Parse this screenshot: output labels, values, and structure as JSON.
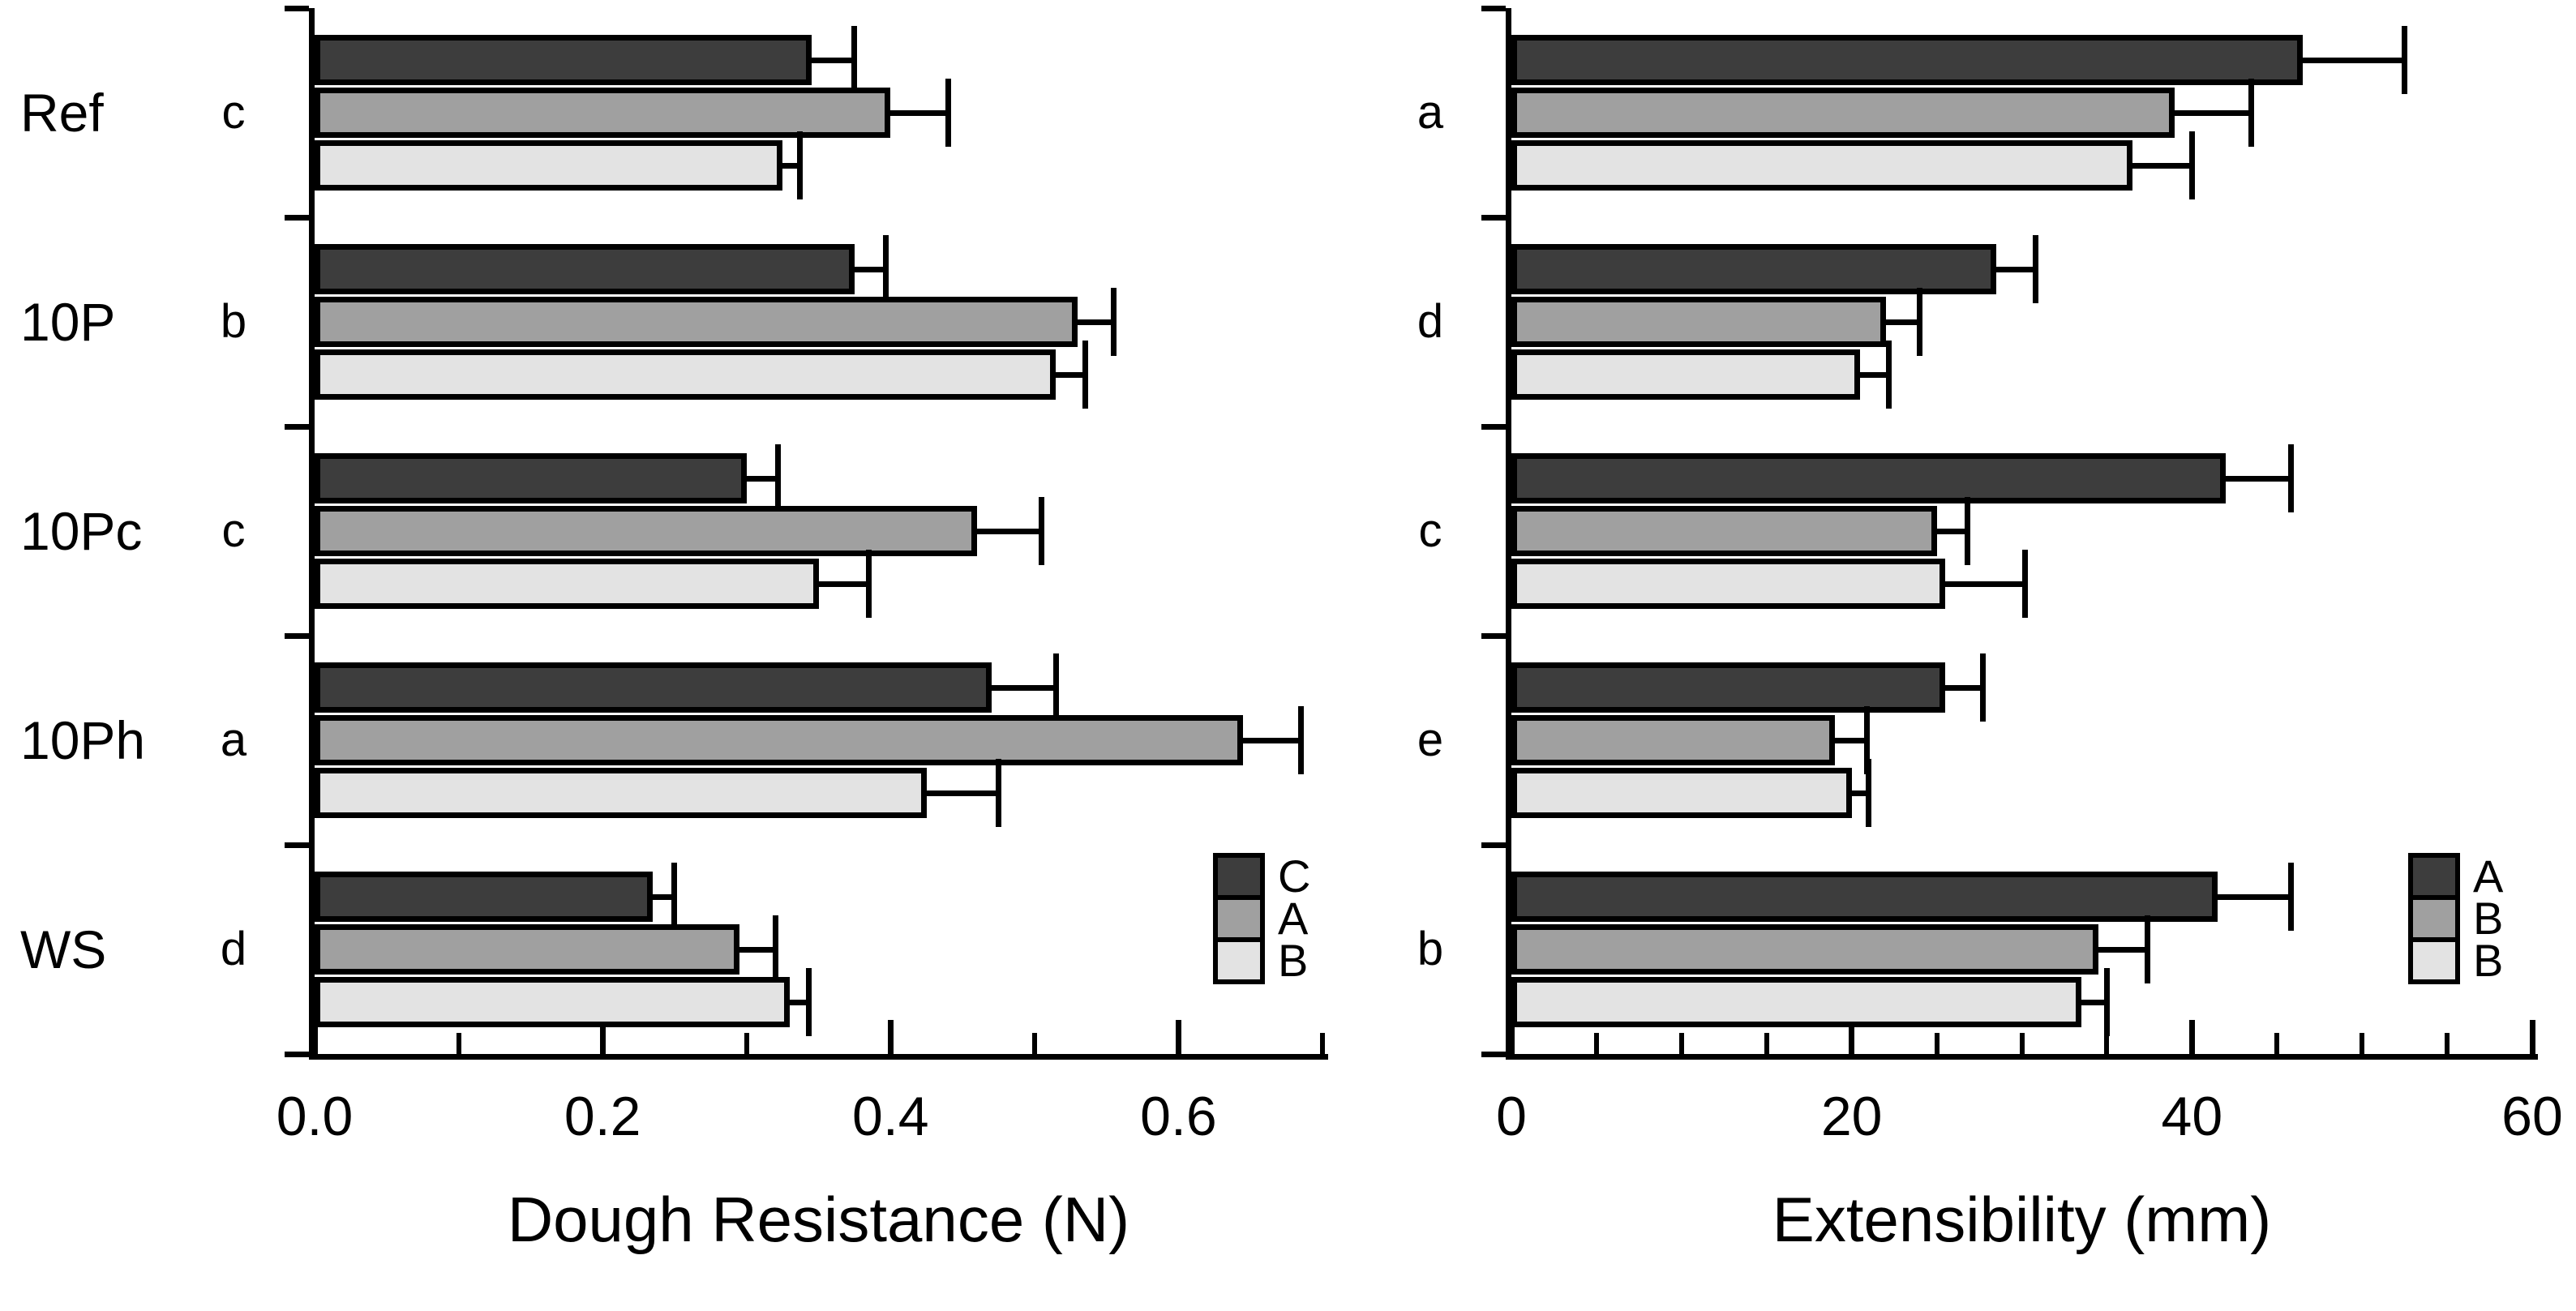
{
  "figure": {
    "background": "#ffffff",
    "foreground": "#000000"
  },
  "colors": {
    "dark": "#3d3d3d",
    "mid": "#a0a0a0",
    "light": "#e3e3e3",
    "outline": "#000000"
  },
  "chart_data": [
    {
      "type": "bar",
      "orientation": "horizontal",
      "xlabel": "Dough Resistance (N)",
      "xlim": [
        0,
        0.7
      ],
      "xticks": [
        0.0,
        0.2,
        0.4,
        0.6
      ],
      "xtick_labels": [
        "0.0",
        "0.2",
        "0.4",
        "0.6"
      ],
      "minor_xticks": [
        0.1,
        0.3,
        0.5,
        0.7
      ],
      "grid": false,
      "categories": [
        "Ref",
        "10P",
        "10Pc",
        "10Ph",
        "WS"
      ],
      "group_letters": [
        "c",
        "b",
        "c",
        "a",
        "d"
      ],
      "show_category_labels": true,
      "legend": [
        "C",
        "A",
        "B"
      ],
      "legend_position": "inside-bottom-right",
      "series": [
        {
          "name": "C",
          "color_key": "dark",
          "values": [
            0.345,
            0.375,
            0.3,
            0.47,
            0.235
          ],
          "errors": [
            0.03,
            0.022,
            0.022,
            0.045,
            0.015
          ]
        },
        {
          "name": "A",
          "color_key": "mid",
          "values": [
            0.4,
            0.53,
            0.46,
            0.645,
            0.295
          ],
          "errors": [
            0.04,
            0.025,
            0.045,
            0.04,
            0.025
          ]
        },
        {
          "name": "B",
          "color_key": "light",
          "values": [
            0.325,
            0.515,
            0.35,
            0.425,
            0.33
          ],
          "errors": [
            0.012,
            0.02,
            0.035,
            0.05,
            0.013
          ]
        }
      ]
    },
    {
      "type": "bar",
      "orientation": "horizontal",
      "xlabel": "Extensibility (mm)",
      "xlim": [
        0,
        60
      ],
      "xticks": [
        0,
        20,
        40,
        60
      ],
      "xtick_labels": [
        "0",
        "20",
        "40",
        "60"
      ],
      "minor_xticks": [
        5,
        10,
        15,
        25,
        30,
        35,
        45,
        50,
        55
      ],
      "grid": false,
      "categories": [
        "Ref",
        "10P",
        "10Pc",
        "10Ph",
        "WS"
      ],
      "group_letters": [
        "a",
        "d",
        "c",
        "e",
        "b"
      ],
      "show_category_labels": false,
      "legend": [
        "A",
        "B",
        "B"
      ],
      "legend_position": "inside-bottom-right",
      "series": [
        {
          "name": "A",
          "color_key": "dark",
          "values": [
            46.5,
            28.5,
            42.0,
            25.5,
            41.5
          ],
          "errors": [
            6.0,
            2.3,
            3.8,
            2.2,
            4.3
          ]
        },
        {
          "name": "B",
          "color_key": "mid",
          "values": [
            39.0,
            22.0,
            25.0,
            19.0,
            34.5
          ],
          "errors": [
            4.5,
            2.0,
            1.8,
            1.9,
            2.9
          ]
        },
        {
          "name": "B",
          "color_key": "light",
          "values": [
            36.5,
            20.5,
            25.5,
            20.0,
            33.5
          ],
          "errors": [
            3.5,
            1.7,
            4.7,
            1.0,
            1.5
          ]
        }
      ]
    }
  ]
}
